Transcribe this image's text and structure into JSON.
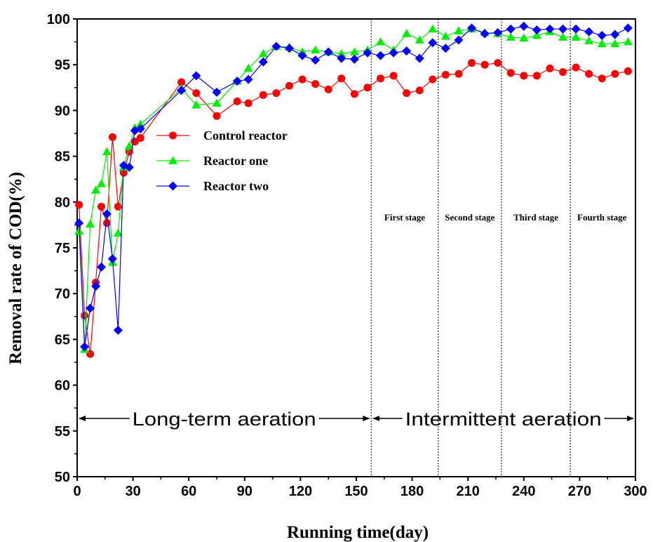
{
  "chart_data": {
    "type": "line",
    "xlabel": "Running time(day)",
    "ylabel": "Removal rate of COD(%)",
    "xlim": [
      0,
      300
    ],
    "ylim": [
      50,
      100
    ],
    "x_ticks": [
      "0",
      "30",
      "60",
      "90",
      "120",
      "150",
      "180",
      "210",
      "240",
      "270",
      "300"
    ],
    "y_ticks": [
      "50",
      "55",
      "60",
      "65",
      "70",
      "75",
      "80",
      "85",
      "90",
      "95",
      "100"
    ],
    "grid": false,
    "legend_position": "center-left",
    "series": [
      {
        "name": "Control reactor",
        "color": "#ff0000",
        "marker": "circle",
        "points": [
          [
            1,
            79.7
          ],
          [
            4,
            67.6
          ],
          [
            7,
            63.4
          ],
          [
            10,
            71.2
          ],
          [
            13,
            79.5
          ],
          [
            16,
            77.7
          ],
          [
            19,
            87.1
          ],
          [
            22,
            79.5
          ],
          [
            25,
            83.2
          ],
          [
            28,
            85.5
          ],
          [
            31,
            86.6
          ],
          [
            34,
            87.0
          ],
          [
            56,
            93.1
          ],
          [
            64,
            91.9
          ],
          [
            75,
            89.4
          ],
          [
            86,
            91.0
          ],
          [
            92,
            90.8
          ],
          [
            100,
            91.7
          ],
          [
            107,
            91.9
          ],
          [
            114,
            92.7
          ],
          [
            121,
            93.4
          ],
          [
            128,
            92.9
          ],
          [
            135,
            92.3
          ],
          [
            142,
            93.5
          ],
          [
            149,
            91.8
          ],
          [
            156,
            92.5
          ],
          [
            163,
            93.5
          ],
          [
            170,
            93.8
          ],
          [
            177,
            91.9
          ],
          [
            184,
            92.2
          ],
          [
            191,
            93.4
          ],
          [
            198,
            93.9
          ],
          [
            205,
            94.0
          ],
          [
            212,
            95.2
          ],
          [
            219,
            95.0
          ],
          [
            226,
            95.2
          ],
          [
            233,
            94.1
          ],
          [
            240,
            93.8
          ],
          [
            247,
            93.8
          ],
          [
            254,
            94.6
          ],
          [
            261,
            94.2
          ],
          [
            268,
            94.7
          ],
          [
            275,
            94.0
          ],
          [
            282,
            93.5
          ],
          [
            289,
            94.0
          ],
          [
            296,
            94.3
          ]
        ]
      },
      {
        "name": "Reactor one",
        "color": "#00ee00",
        "marker": "triangle",
        "points": [
          [
            1,
            76.8
          ],
          [
            4,
            63.9
          ],
          [
            7,
            77.6
          ],
          [
            10,
            81.3
          ],
          [
            13,
            82.0
          ],
          [
            16,
            85.5
          ],
          [
            19,
            73.4
          ],
          [
            22,
            76.6
          ],
          [
            25,
            83.8
          ],
          [
            28,
            86.1
          ],
          [
            31,
            88.1
          ],
          [
            34,
            88.5
          ],
          [
            56,
            92.4
          ],
          [
            64,
            90.6
          ],
          [
            75,
            90.8
          ],
          [
            86,
            93.2
          ],
          [
            92,
            94.6
          ],
          [
            100,
            96.2
          ],
          [
            107,
            97.0
          ],
          [
            114,
            96.9
          ],
          [
            121,
            96.4
          ],
          [
            128,
            96.6
          ],
          [
            135,
            96.4
          ],
          [
            142,
            96.2
          ],
          [
            149,
            96.4
          ],
          [
            156,
            96.6
          ],
          [
            163,
            97.5
          ],
          [
            170,
            96.6
          ],
          [
            177,
            98.4
          ],
          [
            184,
            97.7
          ],
          [
            191,
            98.9
          ],
          [
            198,
            98.1
          ],
          [
            205,
            98.7
          ],
          [
            212,
            98.9
          ],
          [
            219,
            98.5
          ],
          [
            226,
            98.4
          ],
          [
            233,
            98.0
          ],
          [
            240,
            97.9
          ],
          [
            247,
            98.2
          ],
          [
            254,
            98.6
          ],
          [
            261,
            98.0
          ],
          [
            268,
            98.0
          ],
          [
            275,
            97.6
          ],
          [
            282,
            97.3
          ],
          [
            289,
            97.3
          ],
          [
            296,
            97.5
          ]
        ]
      },
      {
        "name": "Reactor two",
        "color": "#0000ff",
        "marker": "diamond",
        "points": [
          [
            1,
            77.7
          ],
          [
            4,
            64.2
          ],
          [
            7,
            68.4
          ],
          [
            10,
            70.8
          ],
          [
            13,
            72.9
          ],
          [
            16,
            78.7
          ],
          [
            19,
            73.8
          ],
          [
            22,
            66.0
          ],
          [
            25,
            84.0
          ],
          [
            28,
            83.8
          ],
          [
            31,
            87.8
          ],
          [
            34,
            88.0
          ],
          [
            56,
            92.2
          ],
          [
            64,
            93.8
          ],
          [
            75,
            92.0
          ],
          [
            86,
            93.2
          ],
          [
            92,
            93.4
          ],
          [
            100,
            95.3
          ],
          [
            107,
            97.0
          ],
          [
            114,
            96.8
          ],
          [
            121,
            96.0
          ],
          [
            128,
            95.5
          ],
          [
            135,
            96.4
          ],
          [
            142,
            95.7
          ],
          [
            149,
            95.6
          ],
          [
            156,
            96.3
          ],
          [
            163,
            96.0
          ],
          [
            170,
            96.3
          ],
          [
            177,
            96.5
          ],
          [
            184,
            95.7
          ],
          [
            191,
            97.4
          ],
          [
            198,
            96.8
          ],
          [
            205,
            97.7
          ],
          [
            212,
            99.0
          ],
          [
            219,
            98.4
          ],
          [
            226,
            98.5
          ],
          [
            233,
            98.9
          ],
          [
            240,
            99.2
          ],
          [
            247,
            98.8
          ],
          [
            254,
            98.9
          ],
          [
            261,
            98.9
          ],
          [
            268,
            98.9
          ],
          [
            275,
            98.6
          ],
          [
            282,
            98.2
          ],
          [
            289,
            98.3
          ],
          [
            296,
            99.0
          ]
        ]
      }
    ],
    "stage_dividers": [
      158,
      194,
      228,
      265,
      300
    ],
    "stages": [
      {
        "label": "First stage",
        "x": 176
      },
      {
        "label": "Second stage",
        "x": 211
      },
      {
        "label": "Third stage",
        "x": 246.5
      },
      {
        "label": "Fourth stage",
        "x": 282
      }
    ],
    "phases": [
      {
        "label": "Long-term aeration",
        "from": 0,
        "to": 158
      },
      {
        "label": "Intermittent aeration",
        "from": 158,
        "to": 300
      }
    ]
  }
}
